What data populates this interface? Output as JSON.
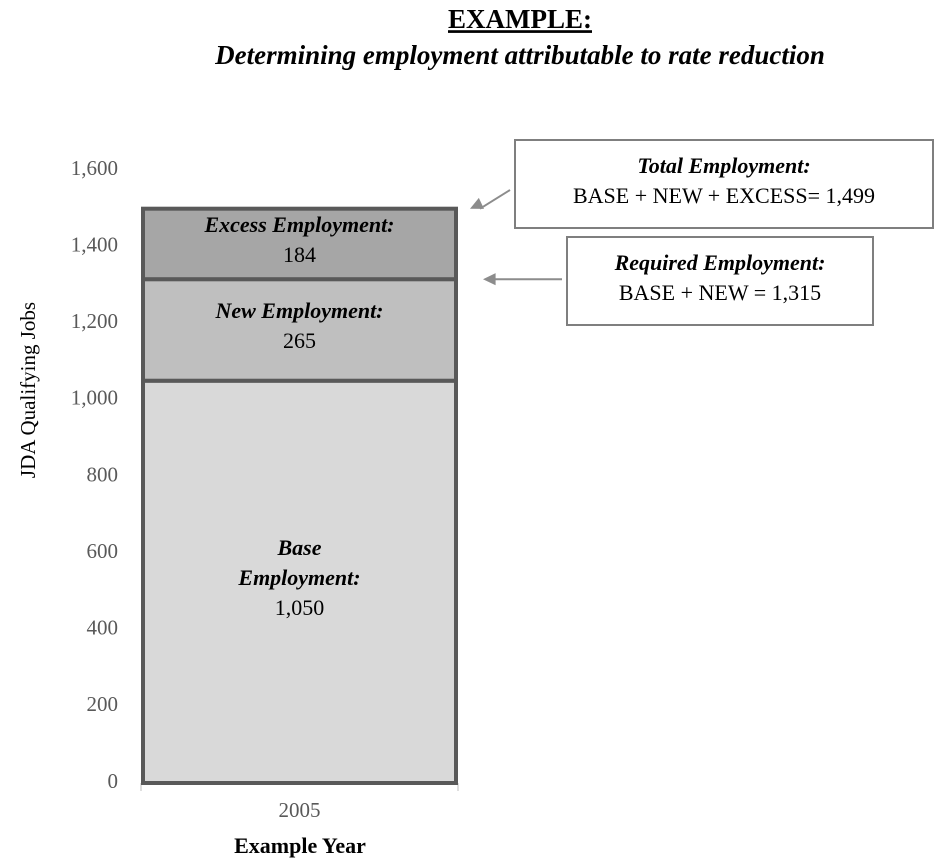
{
  "chart_data": {
    "type": "stacked_bar",
    "title": "EXAMPLE:",
    "subtitle": "Determining employment attributable to rate reduction",
    "y_label": "JDA Qualifying Jobs",
    "x_label": "Example Year",
    "categories": [
      "2005"
    ],
    "series": [
      {
        "name": "Base Employment:",
        "color": "#d9d9d9",
        "values": [
          1050
        ],
        "value_labels": [
          "1,050"
        ]
      },
      {
        "name": "New Employment:",
        "color": "#bfbfbf",
        "values": [
          265
        ],
        "value_labels": [
          "265"
        ]
      },
      {
        "name": "Excess Employment:",
        "color": "#a6a6a6",
        "values": [
          184
        ],
        "value_labels": [
          "184"
        ]
      }
    ],
    "ylim": [
      0,
      1600
    ],
    "yticks": [
      0,
      200,
      400,
      600,
      800,
      {
        "value": 1000,
        "label": "1,000"
      },
      {
        "value": 1200,
        "label": "1,200"
      },
      {
        "value": 1400,
        "label": "1,400"
      },
      {
        "value": 1600,
        "label": "1,600"
      }
    ],
    "annotations": [
      {
        "title": "Total Employment:",
        "text": "BASE + NEW + EXCESS= 1,499"
      },
      {
        "title": "Required Employment:",
        "text": "BASE + NEW = 1,315"
      }
    ]
  }
}
